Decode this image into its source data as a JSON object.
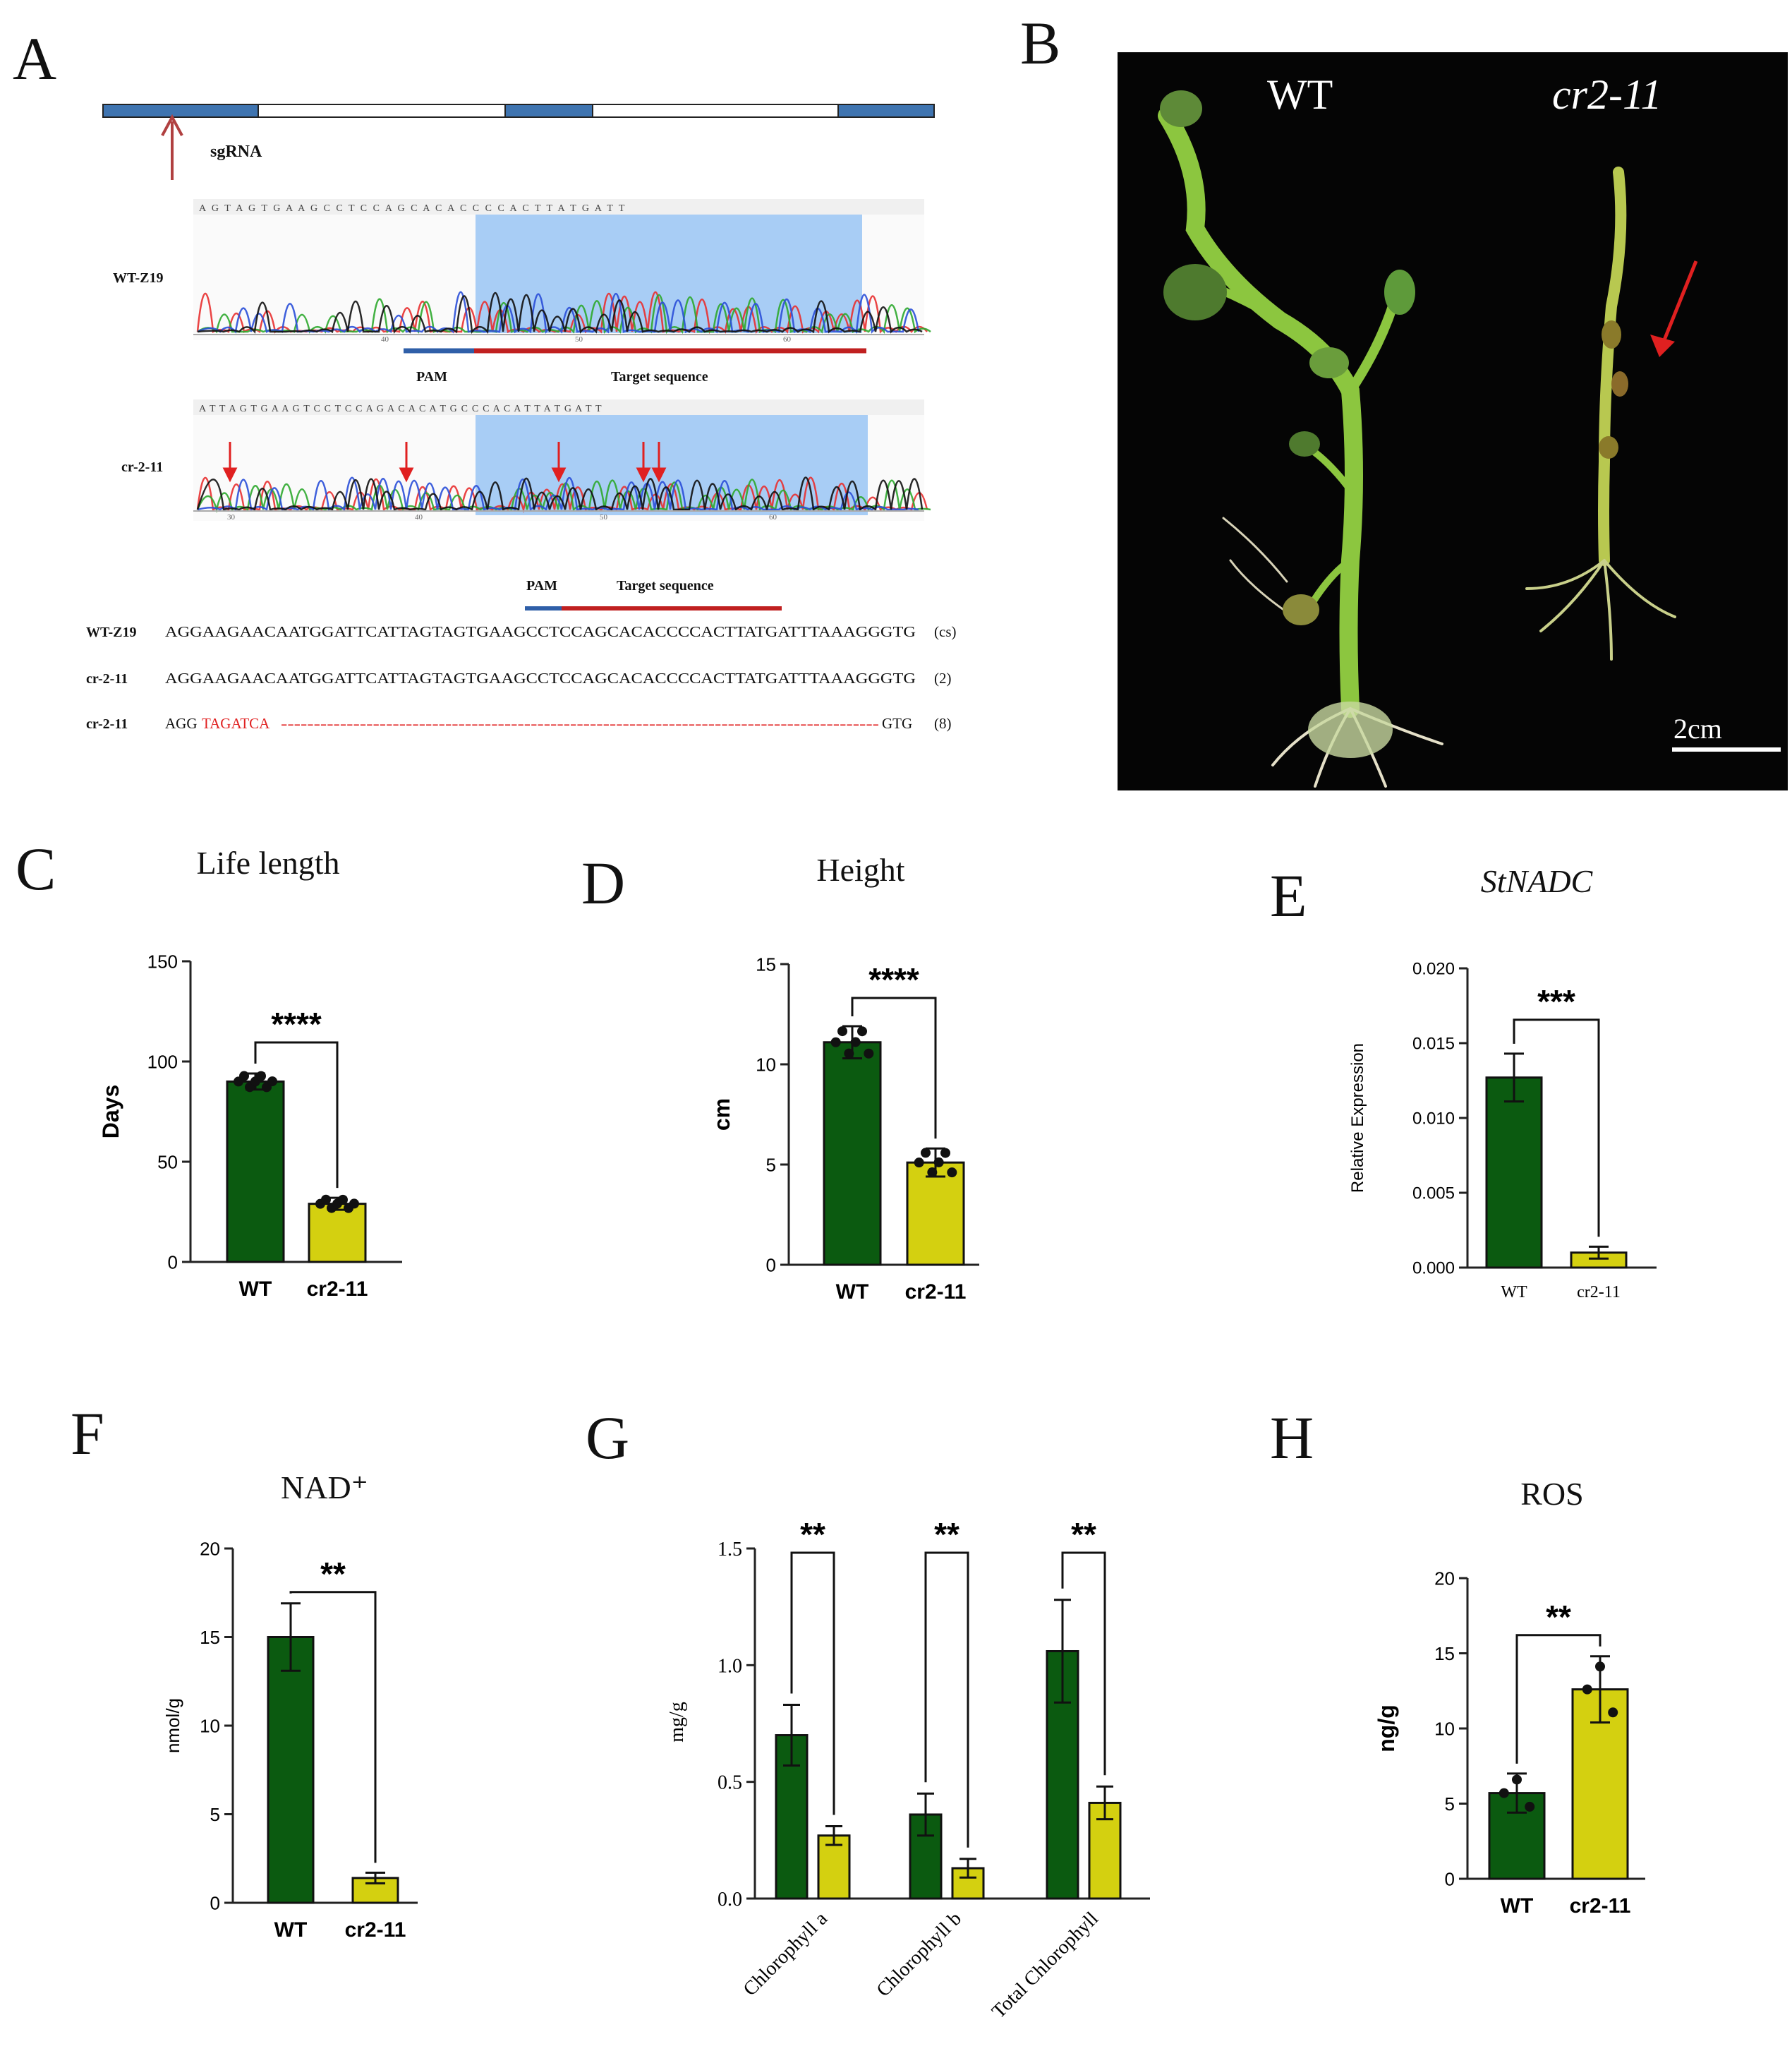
{
  "panel_a": {
    "letter": "A",
    "sgrna_label": "sgRNA",
    "chromatograms": [
      {
        "label": "WT-Z19",
        "bases": "A G T A G T G A A G C C T C C A G C A C A C C C C A C T T A T G A T T",
        "ticks": [
          "40",
          "50",
          "60"
        ]
      },
      {
        "label": "cr-2-11",
        "bases": "A T T A G T G A A G T C C T C C A G A C A C A T G C C C A C A T T A T G A T T",
        "ticks": [
          "30",
          "40",
          "50",
          "60"
        ]
      }
    ],
    "pam_label": "PAM",
    "target_label": "Target sequence",
    "alignment": [
      {
        "name": "WT-Z19",
        "seq_black": "AGGAAGAACAATGGATTCATTAGTAGTGAAGCCTCCAGCACACCCCACTTATGATTTAAAGGGTG",
        "seq_red": "",
        "seq_dash": "",
        "seq_end": "",
        "count": "(cs)"
      },
      {
        "name": "cr-2-11",
        "seq_black": "AGGAAGAACAATGGATTCATTAGTAGTGAAGCCTCCAGCACACCCCACTTATGATTTAAAGGGTG",
        "seq_red": "",
        "seq_dash": "",
        "seq_end": "",
        "count": "(2)"
      },
      {
        "name": "cr-2-11",
        "seq_black": "AGG",
        "seq_red": "TAGATCA",
        "seq_dash": "-------------------------------------------------------------------------------------------",
        "seq_end": "GTG",
        "count": "(8)"
      }
    ]
  },
  "panel_b": {
    "letter": "B",
    "label_wt": "WT",
    "label_mutant": "cr2-11",
    "scale": "2cm"
  },
  "charts": {
    "c": {
      "letter": "C",
      "chart_data": {
        "type": "bar",
        "title": "Life length",
        "ylabel": "Days",
        "categories": [
          "WT",
          "cr2-11"
        ],
        "values": [
          90,
          29
        ],
        "errors": [
          4,
          3
        ],
        "ylim": [
          0,
          150
        ],
        "yticks": [
          "0",
          "50",
          "100",
          "150"
        ],
        "significance": "****",
        "colors": [
          "#0b5a10",
          "#d4d010"
        ]
      }
    },
    "d": {
      "letter": "D",
      "chart_data": {
        "type": "bar",
        "title": "Height",
        "ylabel": "cm",
        "categories": [
          "WT",
          "cr2-11"
        ],
        "values": [
          11.1,
          5.1
        ],
        "errors": [
          0.8,
          0.7
        ],
        "ylim": [
          0,
          15
        ],
        "yticks": [
          "0",
          "5",
          "10",
          "15"
        ],
        "significance": "****",
        "colors": [
          "#0b5a10",
          "#d4d010"
        ]
      }
    },
    "e": {
      "letter": "E",
      "chart_data": {
        "type": "bar",
        "title": "StNADC",
        "ylabel": "Relative Expression",
        "categories": [
          "WT",
          "cr2-11"
        ],
        "values": [
          0.0127,
          0.001
        ],
        "errors": [
          0.0016,
          0.0004
        ],
        "ylim": [
          0,
          0.02
        ],
        "yticks": [
          "0.000",
          "0.005",
          "0.010",
          "0.015",
          "0.020"
        ],
        "significance": "***",
        "colors": [
          "#0b5a10",
          "#d4d010"
        ]
      }
    },
    "f": {
      "letter": "F",
      "chart_data": {
        "type": "bar",
        "title": "NAD⁺",
        "ylabel": "nmol/g",
        "categories": [
          "WT",
          "cr2-11"
        ],
        "values": [
          15.0,
          1.4
        ],
        "errors": [
          1.9,
          0.3
        ],
        "ylim": [
          0,
          20
        ],
        "yticks": [
          "0",
          "5",
          "10",
          "15",
          "20"
        ],
        "significance": "**",
        "colors": [
          "#0b5a10",
          "#d4d010"
        ]
      }
    },
    "g": {
      "letter": "G",
      "chart_data": {
        "type": "bar",
        "title": "",
        "ylabel": "mg/g",
        "categories": [
          "Chlorophyll a",
          "Chlorophyll b",
          "Total Chlorophyll"
        ],
        "series": [
          {
            "values": [
              0.7,
              0.36,
              1.06
            ],
            "errors": [
              0.13,
              0.09,
              0.22
            ]
          },
          {
            "values": [
              0.27,
              0.13,
              0.41
            ],
            "errors": [
              0.04,
              0.04,
              0.07
            ]
          }
        ],
        "ylim": [
          0,
          1.5
        ],
        "yticks": [
          "0.0",
          "0.5",
          "1.0",
          "1.5"
        ],
        "significance": [
          "**",
          "**",
          "**"
        ],
        "colors": [
          "#0b5a10",
          "#d4d010"
        ]
      }
    },
    "h": {
      "letter": "H",
      "chart_data": {
        "type": "bar",
        "title": "ROS",
        "ylabel": "ng/g",
        "categories": [
          "WT",
          "cr2-11"
        ],
        "values": [
          5.7,
          12.6
        ],
        "errors": [
          1.3,
          2.2
        ],
        "ylim": [
          0,
          20
        ],
        "yticks": [
          "0",
          "5",
          "10",
          "15",
          "20"
        ],
        "significance": "**",
        "colors": [
          "#0b5a10",
          "#d4d010"
        ]
      }
    }
  }
}
